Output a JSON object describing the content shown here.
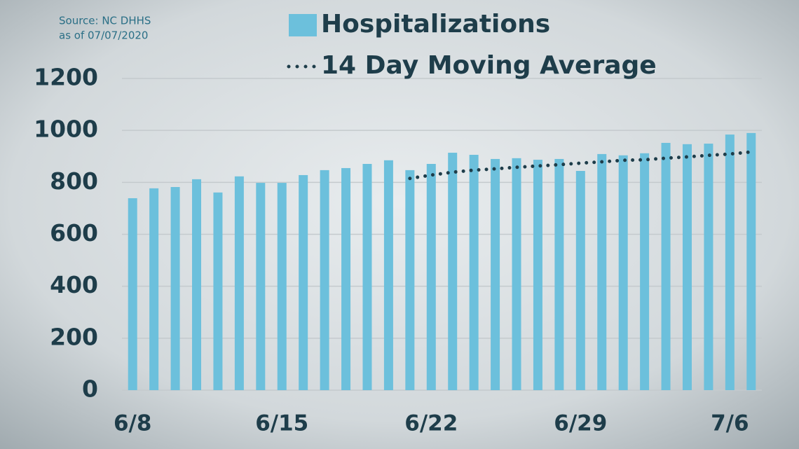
{
  "chart_data": {
    "type": "bar",
    "annotations": [
      "Source: NC DHHS",
      "as of 07/07/2020"
    ],
    "categories": [
      "6/8",
      null,
      null,
      null,
      null,
      null,
      null,
      "6/15",
      null,
      null,
      null,
      null,
      null,
      null,
      "6/22",
      null,
      null,
      null,
      null,
      null,
      null,
      "6/29",
      null,
      null,
      null,
      null,
      null,
      null,
      "7/6",
      null
    ],
    "series": [
      {
        "name": "Hospitalizations",
        "type": "bar",
        "color": "#6cc0dc",
        "values": [
          739,
          777,
          782,
          812,
          761,
          823,
          798,
          798,
          828,
          847,
          855,
          871,
          885,
          847,
          871,
          914,
          906,
          890,
          893,
          887,
          890,
          844,
          909,
          904,
          912,
          952,
          947,
          949,
          984,
          990
        ]
      },
      {
        "name": "14 Day Moving Average",
        "type": "line",
        "color": "#1e3d4a",
        "values": [
          null,
          null,
          null,
          null,
          null,
          null,
          null,
          null,
          null,
          null,
          null,
          null,
          null,
          815,
          828,
          839,
          847,
          852,
          858,
          863,
          868,
          874,
          879,
          885,
          887,
          893,
          898,
          904,
          909,
          917
        ]
      }
    ],
    "ylim": [
      0,
      1200
    ],
    "yticks": [
      0,
      200,
      400,
      600,
      800,
      1000,
      1200
    ],
    "grid": true
  }
}
